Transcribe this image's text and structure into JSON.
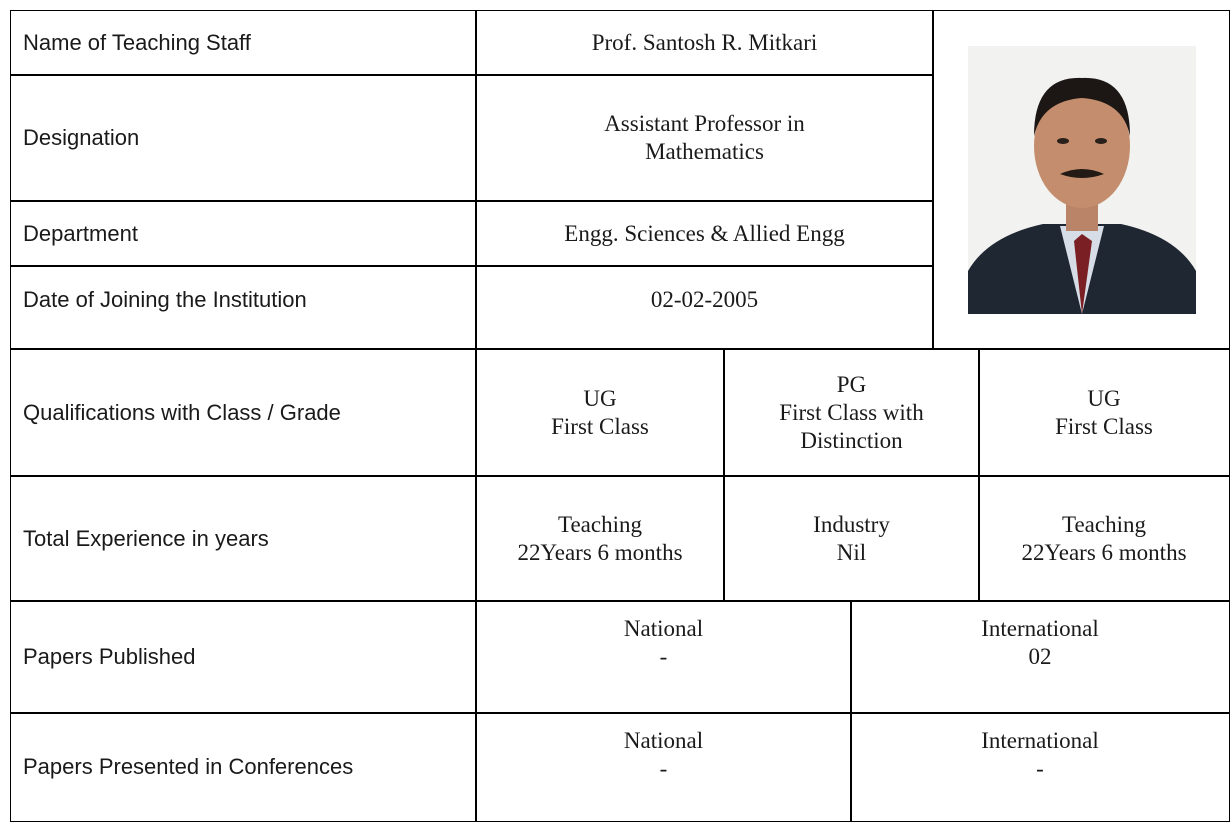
{
  "profile": {
    "name_label": "Name of Teaching Staff",
    "name": "Prof. Santosh R. Mitkari",
    "designation_label": "Designation",
    "designation": "Assistant Professor in Mathematics",
    "department_label": "Department",
    "department": "Engg. Sciences & Allied Engg",
    "joining_label": "Date of Joining the Institution",
    "joining_date": "02-02-2005"
  },
  "qualifications": {
    "label": "Qualifications with Class / Grade",
    "entries": [
      {
        "level": "UG",
        "grade": "First Class"
      },
      {
        "level": "PG",
        "grade": "First Class with Distinction"
      },
      {
        "level": "UG",
        "grade": "First Class"
      }
    ]
  },
  "experience": {
    "label": "Total Experience in years",
    "entries": [
      {
        "type": "Teaching",
        "duration": "22Years 6 months"
      },
      {
        "type": "Industry",
        "duration": "Nil"
      },
      {
        "type": "Teaching",
        "duration": "22Years 6 months"
      }
    ]
  },
  "papers_published": {
    "label": "Papers Published",
    "national": {
      "heading": "National",
      "count": "-"
    },
    "international": {
      "heading": "International",
      "count": "02"
    }
  },
  "papers_presented": {
    "label": "Papers Presented in Conferences",
    "national": {
      "heading": "National",
      "count": "-"
    },
    "international": {
      "heading": "International",
      "count": "-"
    }
  }
}
